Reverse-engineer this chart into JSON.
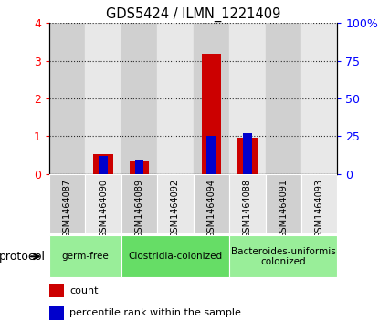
{
  "title": "GDS5424 / ILMN_1221409",
  "samples": [
    "GSM1464087",
    "GSM1464090",
    "GSM1464089",
    "GSM1464092",
    "GSM1464094",
    "GSM1464088",
    "GSM1464091",
    "GSM1464093"
  ],
  "count_values": [
    0.0,
    0.52,
    0.32,
    0.0,
    3.18,
    0.95,
    0.0,
    0.0
  ],
  "percentile_values_pct": [
    0.0,
    12.0,
    9.0,
    0.0,
    25.0,
    27.0,
    0.0,
    0.0
  ],
  "ylim_left": [
    0,
    4
  ],
  "ylim_right": [
    0,
    100
  ],
  "yticks_left": [
    0,
    1,
    2,
    3,
    4
  ],
  "ytick_labels_left": [
    "0",
    "1",
    "2",
    "3",
    "4"
  ],
  "yticks_right": [
    0,
    25,
    50,
    75,
    100
  ],
  "ytick_labels_right": [
    "0",
    "25",
    "50",
    "75",
    "100%"
  ],
  "count_bar_width": 0.55,
  "percentile_bar_width": 0.25,
  "count_color": "#cc0000",
  "percentile_color": "#0000cc",
  "bg_color_odd": "#d0d0d0",
  "bg_color_even": "#e8e8e8",
  "protocol_groups": [
    {
      "label": "germ-free",
      "indices": [
        0,
        1
      ],
      "color": "#99ee99"
    },
    {
      "label": "Clostridia-colonized",
      "indices": [
        2,
        3,
        4
      ],
      "color": "#66dd66"
    },
    {
      "label": "Bacteroides-uniformis\ncolonized",
      "indices": [
        5,
        6,
        7
      ],
      "color": "#99ee99"
    }
  ],
  "legend_count_label": "count",
  "legend_percentile_label": "percentile rank within the sample",
  "protocol_label": "protocol"
}
